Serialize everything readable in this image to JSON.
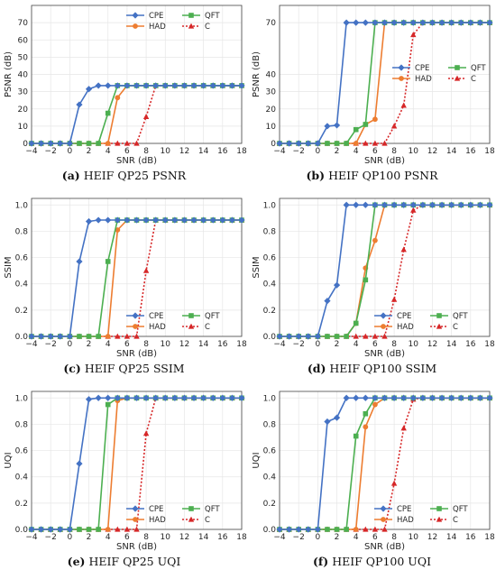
{
  "colors": {
    "CPE": "#4472c4",
    "HAD": "#ed7d31",
    "QFT": "#4caf50",
    "C": "#d62728",
    "grid": "#e6e6e6",
    "axis": "#444444"
  },
  "chart_data": [
    {
      "id": "a",
      "type": "line",
      "caption_letter": "(a)",
      "caption_text": "HEIF QP25 PSNR",
      "xlabel": "SNR (dB)",
      "ylabel": "PSNR (dB)",
      "xlim": [
        -4,
        18
      ],
      "ylim": [
        0,
        80
      ],
      "xticks": [
        -4,
        -2,
        0,
        2,
        4,
        6,
        8,
        10,
        12,
        14,
        16,
        18
      ],
      "yticks": [
        0,
        10,
        20,
        30,
        40,
        50,
        60,
        70
      ],
      "legend_loc": "top-right",
      "x": [
        -4,
        -3,
        -2,
        -1,
        0,
        1,
        2,
        3,
        4,
        5,
        6,
        7,
        8,
        9,
        10,
        11,
        12,
        13,
        14,
        15,
        16,
        17,
        18
      ],
      "series": [
        {
          "name": "CPE",
          "values": [
            0,
            0,
            0,
            0,
            0,
            22.5,
            31.5,
            33.5,
            33.5,
            33.5,
            33.5,
            33.5,
            33.5,
            33.5,
            33.5,
            33.5,
            33.5,
            33.5,
            33.5,
            33.5,
            33.5,
            33.5,
            33.5
          ]
        },
        {
          "name": "HAD",
          "values": [
            0,
            0,
            0,
            0,
            0,
            0,
            0,
            0,
            0,
            26.5,
            33.5,
            33.5,
            33.5,
            33.5,
            33.5,
            33.5,
            33.5,
            33.5,
            33.5,
            33.5,
            33.5,
            33.5,
            33.5
          ]
        },
        {
          "name": "QFT",
          "values": [
            0,
            0,
            0,
            0,
            0,
            0,
            0,
            0,
            17.5,
            33.5,
            33.5,
            33.5,
            33.5,
            33.5,
            33.5,
            33.5,
            33.5,
            33.5,
            33.5,
            33.5,
            33.5,
            33.5,
            33.5
          ]
        },
        {
          "name": "C",
          "values": [
            0,
            0,
            0,
            0,
            0,
            0,
            0,
            0,
            0,
            0,
            0,
            0,
            15.5,
            33.5,
            33.5,
            33.5,
            33.5,
            33.5,
            33.5,
            33.5,
            33.5,
            33.5,
            33.5
          ]
        }
      ]
    },
    {
      "id": "b",
      "type": "line",
      "caption_letter": "(b)",
      "caption_text": "HEIF QP100 PSNR",
      "xlabel": "SNR (dB)",
      "ylabel": "PSNR (dB)",
      "xlim": [
        -4,
        18
      ],
      "ylim": [
        0,
        80
      ],
      "xticks": [
        -4,
        -2,
        0,
        2,
        4,
        6,
        8,
        10,
        12,
        14,
        16,
        18
      ],
      "yticks": [
        0,
        10,
        20,
        30,
        40,
        70
      ],
      "legend_loc": "center-right",
      "x": [
        -4,
        -3,
        -2,
        -1,
        0,
        1,
        2,
        3,
        4,
        5,
        6,
        7,
        8,
        9,
        10,
        11,
        12,
        13,
        14,
        15,
        16,
        17,
        18
      ],
      "series": [
        {
          "name": "CPE",
          "values": [
            0,
            0,
            0,
            0,
            0,
            10,
            10.5,
            70,
            70,
            70,
            70,
            70,
            70,
            70,
            70,
            70,
            70,
            70,
            70,
            70,
            70,
            70,
            70
          ]
        },
        {
          "name": "HAD",
          "values": [
            0,
            0,
            0,
            0,
            0,
            0,
            0,
            0,
            0,
            11,
            14,
            70,
            70,
            70,
            70,
            70,
            70,
            70,
            70,
            70,
            70,
            70,
            70
          ]
        },
        {
          "name": "QFT",
          "values": [
            0,
            0,
            0,
            0,
            0,
            0,
            0,
            0,
            8,
            11,
            70,
            70,
            70,
            70,
            70,
            70,
            70,
            70,
            70,
            70,
            70,
            70,
            70
          ]
        },
        {
          "name": "C",
          "values": [
            0,
            0,
            0,
            0,
            0,
            0,
            0,
            0,
            0,
            0,
            0,
            0,
            10,
            22,
            63,
            70,
            70,
            70,
            70,
            70,
            70,
            70,
            70
          ]
        }
      ]
    },
    {
      "id": "c",
      "type": "line",
      "caption_letter": "(c)",
      "caption_text": "HEIF QP25 SSIM",
      "xlabel": "SNR (dB)",
      "ylabel": "SSIM",
      "xlim": [
        -4,
        18
      ],
      "ylim": [
        0,
        1.05
      ],
      "xticks": [
        -4,
        -2,
        0,
        2,
        4,
        6,
        8,
        10,
        12,
        14,
        16,
        18
      ],
      "yticks": [
        0.0,
        0.2,
        0.4,
        0.6,
        0.8,
        1.0
      ],
      "legend_loc": "lower-right",
      "x": [
        -4,
        -3,
        -2,
        -1,
        0,
        1,
        2,
        3,
        4,
        5,
        6,
        7,
        8,
        9,
        10,
        11,
        12,
        13,
        14,
        15,
        16,
        17,
        18
      ],
      "series": [
        {
          "name": "CPE",
          "values": [
            0,
            0,
            0,
            0,
            0,
            0.57,
            0.875,
            0.885,
            0.885,
            0.885,
            0.885,
            0.885,
            0.885,
            0.885,
            0.885,
            0.885,
            0.885,
            0.885,
            0.885,
            0.885,
            0.885,
            0.885,
            0.885
          ]
        },
        {
          "name": "HAD",
          "values": [
            0,
            0,
            0,
            0,
            0,
            0,
            0,
            0,
            0,
            0.81,
            0.885,
            0.885,
            0.885,
            0.885,
            0.885,
            0.885,
            0.885,
            0.885,
            0.885,
            0.885,
            0.885,
            0.885,
            0.885
          ]
        },
        {
          "name": "QFT",
          "values": [
            0,
            0,
            0,
            0,
            0,
            0,
            0,
            0,
            0.57,
            0.885,
            0.885,
            0.885,
            0.885,
            0.885,
            0.885,
            0.885,
            0.885,
            0.885,
            0.885,
            0.885,
            0.885,
            0.885,
            0.885
          ]
        },
        {
          "name": "C",
          "values": [
            0,
            0,
            0,
            0,
            0,
            0,
            0,
            0,
            0,
            0,
            0,
            0,
            0.5,
            0.885,
            0.885,
            0.885,
            0.885,
            0.885,
            0.885,
            0.885,
            0.885,
            0.885,
            0.885
          ]
        }
      ]
    },
    {
      "id": "d",
      "type": "line",
      "caption_letter": "(d)",
      "caption_text": "HEIF QP100 SSIM",
      "xlabel": "SNR (dB)",
      "ylabel": "SSIM",
      "xlim": [
        -4,
        18
      ],
      "ylim": [
        0,
        1.05
      ],
      "xticks": [
        -4,
        -2,
        0,
        2,
        4,
        6,
        8,
        10,
        12,
        14,
        16,
        18
      ],
      "yticks": [
        0.0,
        0.2,
        0.4,
        0.6,
        0.8,
        1.0
      ],
      "legend_loc": "lower-right",
      "x": [
        -4,
        -3,
        -2,
        -1,
        0,
        1,
        2,
        3,
        4,
        5,
        6,
        7,
        8,
        9,
        10,
        11,
        12,
        13,
        14,
        15,
        16,
        17,
        18
      ],
      "series": [
        {
          "name": "CPE",
          "values": [
            0,
            0,
            0,
            0,
            0,
            0.27,
            0.39,
            1.0,
            1.0,
            1.0,
            1.0,
            1.0,
            1.0,
            1.0,
            1.0,
            1.0,
            1.0,
            1.0,
            1.0,
            1.0,
            1.0,
            1.0,
            1.0
          ]
        },
        {
          "name": "HAD",
          "values": [
            0,
            0,
            0,
            0,
            0,
            0,
            0,
            0,
            0.1,
            0.52,
            0.73,
            1.0,
            1.0,
            1.0,
            1.0,
            1.0,
            1.0,
            1.0,
            1.0,
            1.0,
            1.0,
            1.0,
            1.0
          ]
        },
        {
          "name": "QFT",
          "values": [
            0,
            0,
            0,
            0,
            0,
            0,
            0,
            0,
            0.1,
            0.43,
            1.0,
            1.0,
            1.0,
            1.0,
            1.0,
            1.0,
            1.0,
            1.0,
            1.0,
            1.0,
            1.0,
            1.0,
            1.0
          ]
        },
        {
          "name": "C",
          "values": [
            0,
            0,
            0,
            0,
            0,
            0,
            0,
            0,
            0,
            0,
            0,
            0,
            0.28,
            0.66,
            0.96,
            1.0,
            1.0,
            1.0,
            1.0,
            1.0,
            1.0,
            1.0,
            1.0
          ]
        }
      ]
    },
    {
      "id": "e",
      "type": "line",
      "caption_letter": "(e)",
      "caption_text": "HEIF QP25 UQI",
      "xlabel": "SNR (dB)",
      "ylabel": "UQI",
      "xlim": [
        -4,
        18
      ],
      "ylim": [
        0,
        1.05
      ],
      "xticks": [
        -4,
        -2,
        0,
        2,
        4,
        6,
        8,
        10,
        12,
        14,
        16,
        18
      ],
      "yticks": [
        0.0,
        0.2,
        0.4,
        0.6,
        0.8,
        1.0
      ],
      "legend_loc": "lower-right",
      "x": [
        -4,
        -3,
        -2,
        -1,
        0,
        1,
        2,
        3,
        4,
        5,
        6,
        7,
        8,
        9,
        10,
        11,
        12,
        13,
        14,
        15,
        16,
        17,
        18
      ],
      "series": [
        {
          "name": "CPE",
          "values": [
            0,
            0,
            0,
            0,
            0,
            0.5,
            0.99,
            1.0,
            1.0,
            1.0,
            1.0,
            1.0,
            1.0,
            1.0,
            1.0,
            1.0,
            1.0,
            1.0,
            1.0,
            1.0,
            1.0,
            1.0,
            1.0
          ]
        },
        {
          "name": "HAD",
          "values": [
            0,
            0,
            0,
            0,
            0,
            0,
            0,
            0,
            0,
            0.98,
            1.0,
            1.0,
            1.0,
            1.0,
            1.0,
            1.0,
            1.0,
            1.0,
            1.0,
            1.0,
            1.0,
            1.0,
            1.0
          ]
        },
        {
          "name": "QFT",
          "values": [
            0,
            0,
            0,
            0,
            0,
            0,
            0,
            0,
            0.95,
            1.0,
            1.0,
            1.0,
            1.0,
            1.0,
            1.0,
            1.0,
            1.0,
            1.0,
            1.0,
            1.0,
            1.0,
            1.0,
            1.0
          ]
        },
        {
          "name": "C",
          "values": [
            0,
            0,
            0,
            0,
            0,
            0,
            0,
            0,
            0,
            0,
            0,
            0,
            0.73,
            1.0,
            1.0,
            1.0,
            1.0,
            1.0,
            1.0,
            1.0,
            1.0,
            1.0,
            1.0
          ]
        }
      ]
    },
    {
      "id": "f",
      "type": "line",
      "caption_letter": "(f)",
      "caption_text": "HEIF QP100 UQI",
      "xlabel": "SNR (dB)",
      "ylabel": "UQI",
      "xlim": [
        -4,
        18
      ],
      "ylim": [
        0,
        1.05
      ],
      "xticks": [
        -4,
        -2,
        0,
        2,
        4,
        6,
        8,
        10,
        12,
        14,
        16,
        18
      ],
      "yticks": [
        0.0,
        0.2,
        0.4,
        0.6,
        0.8,
        1.0
      ],
      "legend_loc": "lower-right",
      "x": [
        -4,
        -3,
        -2,
        -1,
        0,
        1,
        2,
        3,
        4,
        5,
        6,
        7,
        8,
        9,
        10,
        11,
        12,
        13,
        14,
        15,
        16,
        17,
        18
      ],
      "series": [
        {
          "name": "CPE",
          "values": [
            0,
            0,
            0,
            0,
            0,
            0.82,
            0.85,
            1.0,
            1.0,
            1.0,
            1.0,
            1.0,
            1.0,
            1.0,
            1.0,
            1.0,
            1.0,
            1.0,
            1.0,
            1.0,
            1.0,
            1.0,
            1.0
          ]
        },
        {
          "name": "HAD",
          "values": [
            0,
            0,
            0,
            0,
            0,
            0,
            0,
            0,
            0,
            0.78,
            0.95,
            1.0,
            1.0,
            1.0,
            1.0,
            1.0,
            1.0,
            1.0,
            1.0,
            1.0,
            1.0,
            1.0,
            1.0
          ]
        },
        {
          "name": "QFT",
          "values": [
            0,
            0,
            0,
            0,
            0,
            0,
            0,
            0,
            0.71,
            0.88,
            1.0,
            1.0,
            1.0,
            1.0,
            1.0,
            1.0,
            1.0,
            1.0,
            1.0,
            1.0,
            1.0,
            1.0,
            1.0
          ]
        },
        {
          "name": "C",
          "values": [
            0,
            0,
            0,
            0,
            0,
            0,
            0,
            0,
            0,
            0,
            0,
            0,
            0.35,
            0.77,
            0.99,
            1.0,
            1.0,
            1.0,
            1.0,
            1.0,
            1.0,
            1.0,
            1.0
          ]
        }
      ]
    }
  ]
}
